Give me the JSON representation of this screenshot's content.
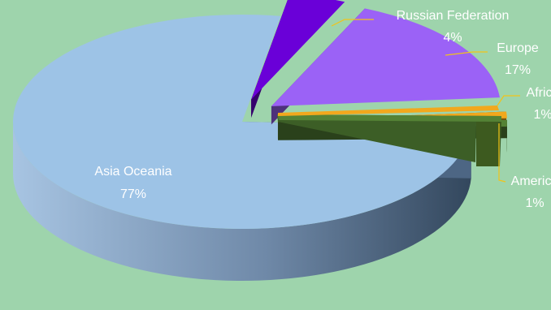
{
  "chart_data": {
    "type": "pie",
    "title": "",
    "three_d": true,
    "slices": [
      {
        "label": "Asia Oceania",
        "value": 77,
        "pct_label": "77%",
        "color": "#9dc3e6"
      },
      {
        "label": "Russian Federation",
        "value": 4,
        "pct_label": "4%",
        "color": "#6a00d8"
      },
      {
        "label": "Europe",
        "value": 17,
        "pct_label": "17%",
        "color": "#9b62f6"
      },
      {
        "label": "Africa",
        "value": 1,
        "pct_label": "1%",
        "color": "#f2a81d"
      },
      {
        "label": "America",
        "value": 1,
        "pct_label": "1%",
        "color": "#548235"
      }
    ],
    "leader_color": "#f2c318",
    "background": "#9ed4ac",
    "legend": "none"
  }
}
